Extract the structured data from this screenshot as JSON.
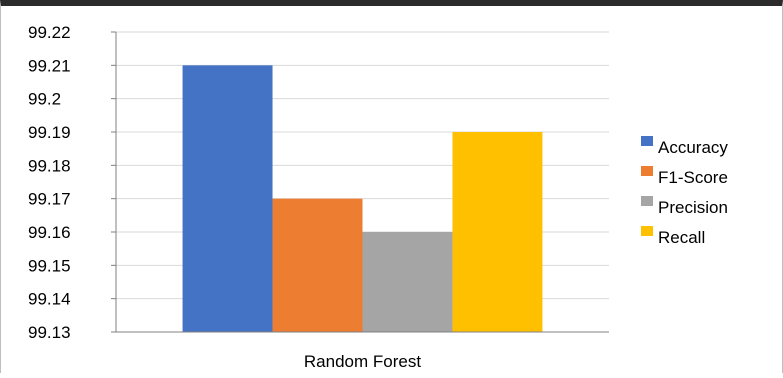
{
  "chart_data": {
    "type": "bar",
    "categories": [
      "Random Forest"
    ],
    "series": [
      {
        "name": "Accuracy",
        "values": [
          99.21
        ],
        "color": "#4472C4"
      },
      {
        "name": "F1-Score",
        "values": [
          99.17
        ],
        "color": "#ED7D31"
      },
      {
        "name": "Precision",
        "values": [
          99.16
        ],
        "color": "#A5A5A5"
      },
      {
        "name": "Recall",
        "values": [
          99.19
        ],
        "color": "#FFC000"
      }
    ],
    "ylim": [
      99.13,
      99.22
    ],
    "yticks": [
      "99.13",
      "99.14",
      "99.15",
      "99.16",
      "99.17",
      "99.18",
      "99.19",
      "99.2",
      "99.21",
      "99.22"
    ],
    "grid": true,
    "legend": "right"
  }
}
